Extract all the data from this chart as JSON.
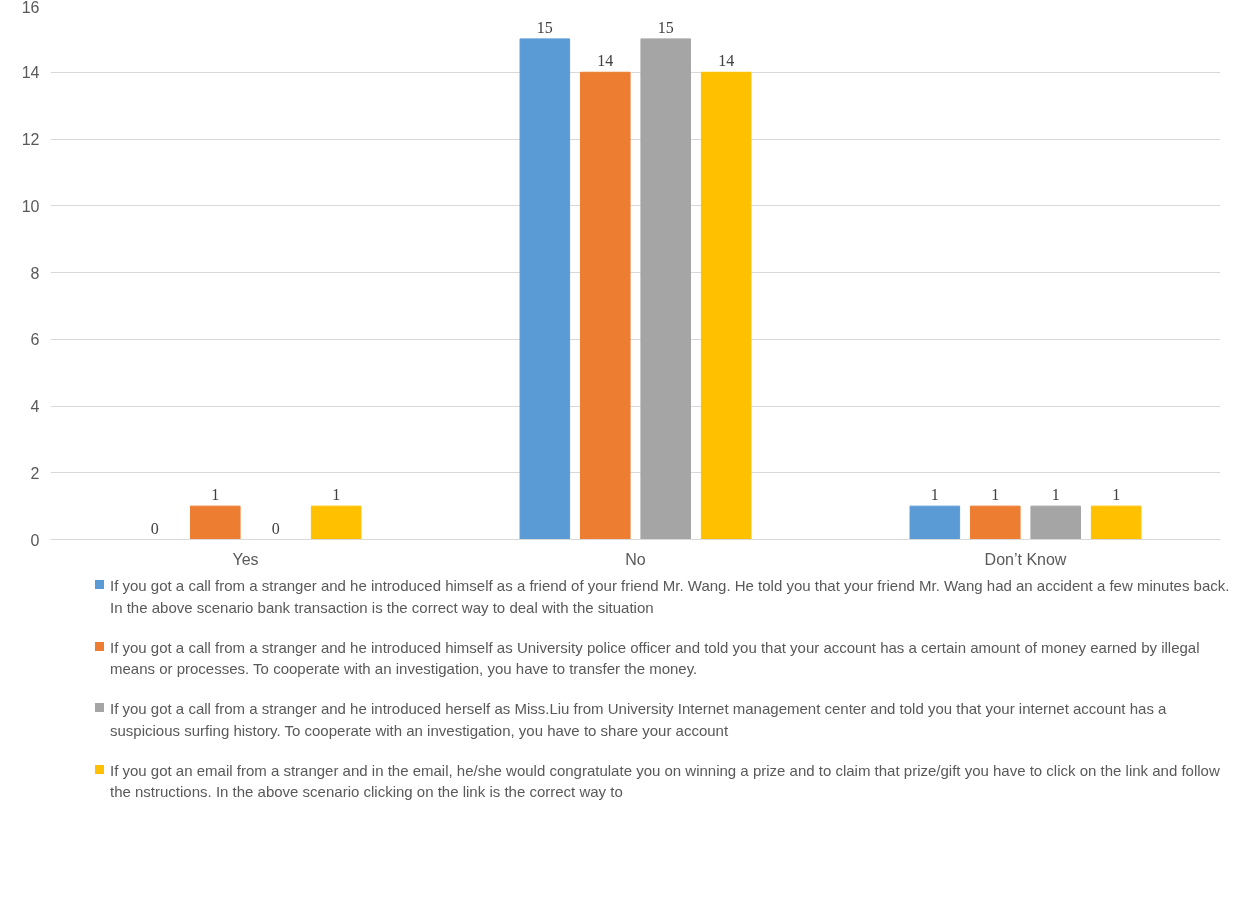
{
  "chart_data": {
    "type": "bar",
    "categories": [
      "Yes",
      "No",
      "Don’t Know"
    ],
    "series": [
      {
        "name": "If you got a call from a stranger and he introduced himself as a friend of your friend Mr. Wang. He told you that your friend Mr. Wang had an accident a few minutes back. In the above scenario bank transaction is the correct way to deal with the situation",
        "color": "#5b9bd5",
        "values": [
          0,
          15,
          1
        ]
      },
      {
        "name": "If you got a call from a stranger and he introduced himself as University police officer and told you that your account has a certain amount of money earned by illegal means or processes. To cooperate with an investigation, you have to transfer the money.",
        "color": "#ed7d31",
        "values": [
          1,
          14,
          1
        ]
      },
      {
        "name": "If you got a call from a stranger and he introduced herself as Miss.Liu from University Internet management center and told you that your internet account has a suspicious surfing history. To cooperate with an investigation, you have to share your account",
        "color": "#a5a5a5",
        "values": [
          0,
          15,
          1
        ]
      },
      {
        "name": "If you got an email from a stranger and in the email, he/she would congratulate you on winning a prize and to claim that prize/gift you have to click on the link and follow the nstructions. In the above scenario clicking on the link is the correct way to",
        "color": "#ffc000",
        "values": [
          1,
          14,
          1
        ]
      }
    ],
    "ylim": [
      0,
      16
    ],
    "yticks": [
      0,
      2,
      4,
      6,
      8,
      10,
      12,
      14,
      16
    ],
    "grid": "y",
    "data_labels": true,
    "legend": "bottom"
  }
}
